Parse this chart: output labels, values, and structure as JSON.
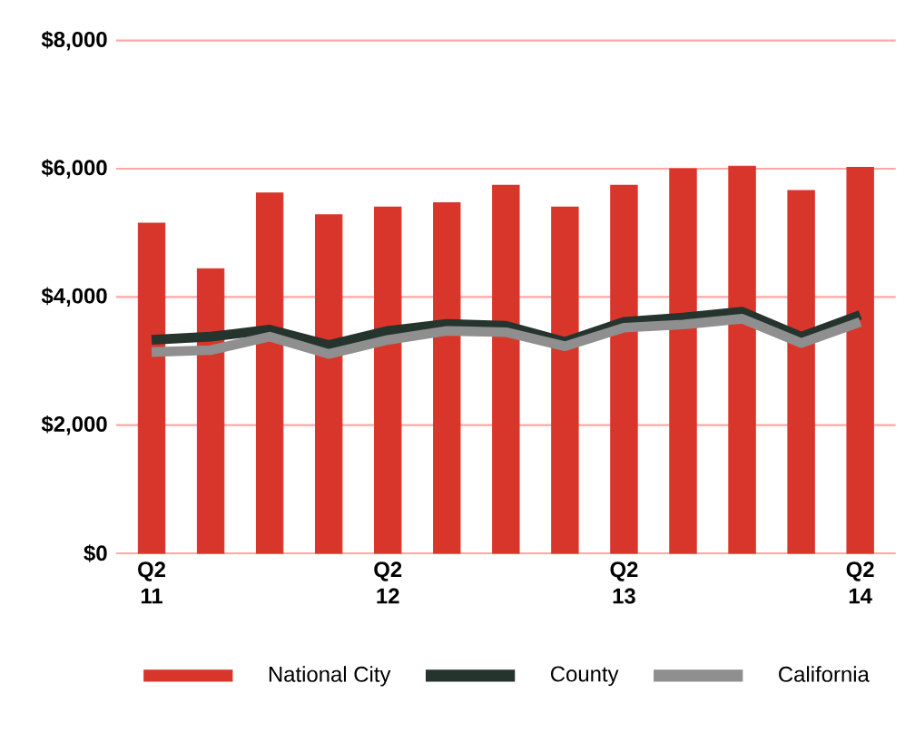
{
  "chart_data": {
    "type": "bar",
    "categories": [
      "Q2 11",
      null,
      null,
      null,
      "Q2 12",
      null,
      null,
      null,
      "Q2 13",
      null,
      null,
      null,
      "Q2 14"
    ],
    "series": [
      {
        "name": "National City",
        "color": "#d9362b",
        "values": [
          5150,
          4440,
          5620,
          5280,
          5400,
          5470,
          5740,
          5400,
          5740,
          6000,
          6040,
          5660,
          6020
        ]
      },
      {
        "name": "County",
        "type": "line",
        "color": "#26342e",
        "values": [
          3330,
          3380,
          3490,
          3250,
          3470,
          3580,
          3550,
          3300,
          3610,
          3680,
          3770,
          3380,
          3720
        ]
      },
      {
        "name": "California",
        "type": "line",
        "color": "#8f8f8f",
        "values": [
          3140,
          3170,
          3380,
          3110,
          3330,
          3470,
          3450,
          3230,
          3520,
          3570,
          3660,
          3280,
          3610
        ]
      }
    ],
    "ylim": [
      0,
      8000
    ],
    "yticks": [
      {
        "value": 0,
        "label": "$0"
      },
      {
        "value": 2000,
        "label": "$2,000"
      },
      {
        "value": 4000,
        "label": "$4,000"
      },
      {
        "value": 6000,
        "label": "$6,000"
      },
      {
        "value": 8000,
        "label": "$8,000"
      }
    ],
    "grid": "y",
    "legend": "bottom"
  }
}
